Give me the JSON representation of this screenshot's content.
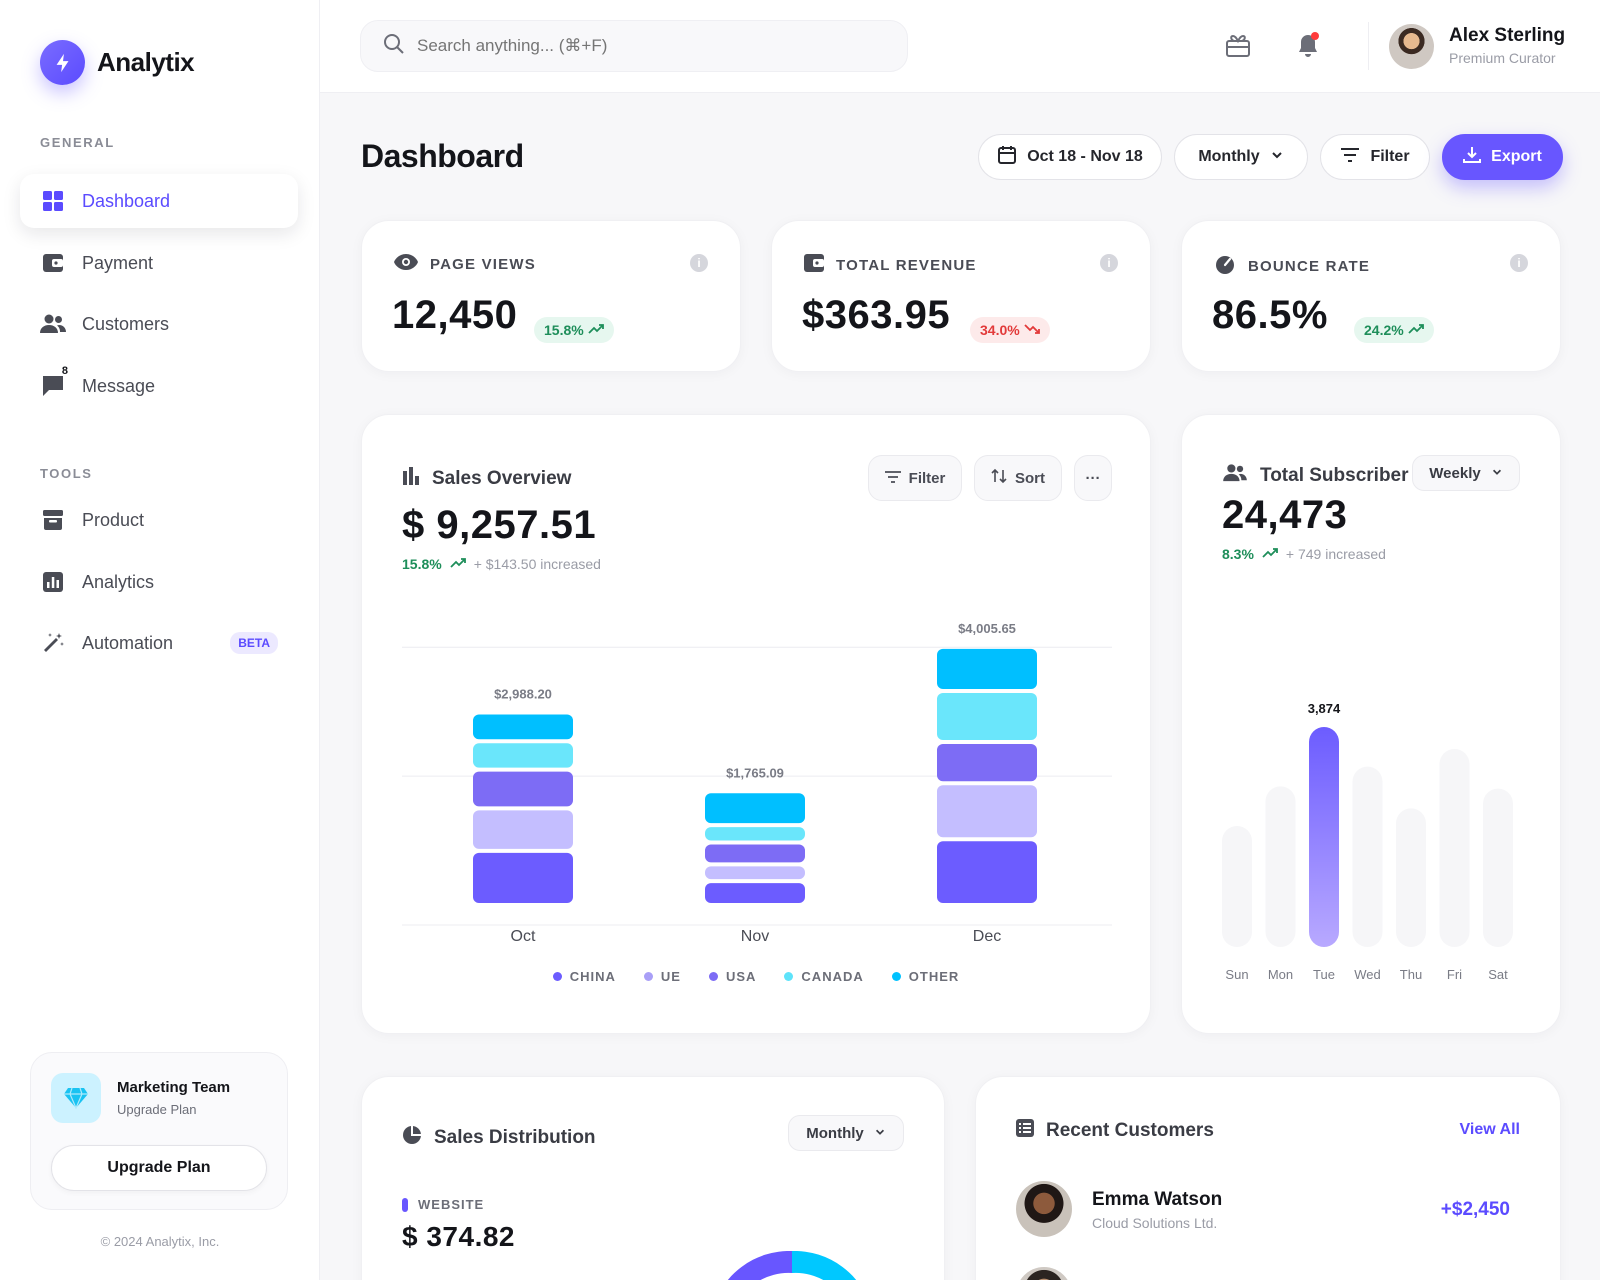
{
  "app": {
    "name": "Analytix"
  },
  "sidebar": {
    "general_label": "GENERAL",
    "tools_label": "TOOLS",
    "general_items": [
      {
        "label": "Dashboard",
        "icon": "grid-icon",
        "active": true
      },
      {
        "label": "Payment",
        "icon": "wallet-icon"
      },
      {
        "label": "Customers",
        "icon": "users-icon"
      },
      {
        "label": "Message",
        "icon": "flag-message-icon",
        "badge": "8"
      }
    ],
    "tools_items": [
      {
        "label": "Product",
        "icon": "archive-icon"
      },
      {
        "label": "Analytics",
        "icon": "analytics-icon"
      },
      {
        "label": "Automation",
        "icon": "magic-wand-icon",
        "tag": "BETA"
      }
    ],
    "team": {
      "name": "Marketing Team",
      "plan": "Upgrade Plan",
      "button": "Upgrade Plan"
    },
    "copyright": "© 2024 Analytix, Inc."
  },
  "topbar": {
    "search_placeholder": "Search anything... (⌘+F)",
    "user": {
      "name": "Alex Sterling",
      "role": "Premium Curator"
    }
  },
  "header": {
    "title": "Dashboard",
    "date_range": "Oct 18 - Nov 18",
    "period": "Monthly",
    "filter": "Filter",
    "export": "Export"
  },
  "stats": [
    {
      "label": "PAGE VIEWS",
      "value": "12,450",
      "change": "15.8%",
      "trend": "up",
      "icon": "eye-icon"
    },
    {
      "label": "TOTAL REVENUE",
      "value": "$363.95",
      "change": "34.0%",
      "trend": "down",
      "icon": "wallet-icon"
    },
    {
      "label": "BOUNCE RATE",
      "value": "86.5%",
      "change": "24.2%",
      "trend": "up",
      "icon": "gauge-icon"
    }
  ],
  "sales_overview": {
    "title": "Sales Overview",
    "value": "$ 9,257.51",
    "change": "15.8%",
    "increase": "+ $143.50 increased",
    "filter": "Filter",
    "sort": "Sort",
    "more": "···"
  },
  "subscriber": {
    "title": "Total Subscriber",
    "period": "Weekly",
    "value": "24,473",
    "change": "8.3%",
    "increase": "+ 749 increased"
  },
  "distribution": {
    "title": "Sales Distribution",
    "period": "Monthly",
    "sub_label": "WEBSITE",
    "value": "$ 374.82"
  },
  "recent_customers": {
    "title": "Recent Customers",
    "view_all": "View All",
    "rows": [
      {
        "name": "Emma Watson",
        "company": "Cloud Solutions Ltd.",
        "amount": "+$2,450"
      }
    ]
  },
  "colors": {
    "accent": "#6856ff",
    "china": "#6c5cff",
    "ue": "#b8b2ff",
    "usa": "#7d6cf5",
    "canada": "#5ee3fa",
    "other": "#00c2ff"
  },
  "chart_data": [
    {
      "type": "bar",
      "stacked": true,
      "categories": [
        "Oct",
        "Nov",
        "Dec"
      ],
      "totals": [
        2988.2,
        1765.09,
        4005.65
      ],
      "total_labels": [
        "$2,988.20",
        "$1,765.09",
        "$4,005.65"
      ],
      "series": [
        {
          "name": "CHINA",
          "color": "#6c5cff",
          "values": [
            840,
            370,
            1020
          ]
        },
        {
          "name": "UE",
          "color": "#c4beff",
          "values": [
            660,
            260,
            870
          ]
        },
        {
          "name": "USA",
          "color": "#7d6cf5",
          "values": [
            600,
            340,
            640
          ]
        },
        {
          "name": "CANADA",
          "color": "#6ae6fb",
          "values": [
            440,
            270,
            790
          ]
        },
        {
          "name": "OTHER",
          "color": "#00bfff",
          "values": [
            448,
            525,
            686
          ]
        }
      ],
      "grid": true
    },
    {
      "type": "bar",
      "categories": [
        "Sun",
        "Mon",
        "Tue",
        "Wed",
        "Thu",
        "Fri",
        "Sat"
      ],
      "values": [
        0.55,
        0.73,
        1.0,
        0.82,
        0.63,
        0.9,
        0.72
      ],
      "highlight": {
        "index": 2,
        "label": "3,874"
      }
    }
  ]
}
